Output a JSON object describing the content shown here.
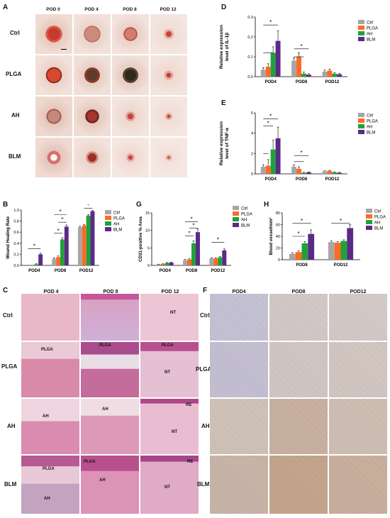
{
  "colors": {
    "ctrl": "#a6a6a6",
    "plga": "#ff6a28",
    "ah": "#1ea33a",
    "blm": "#5b2a86"
  },
  "panels": {
    "A": {
      "letter": "A",
      "cols": [
        "POD 0",
        "POD 4",
        "POD 8",
        "POD 12"
      ],
      "rows": [
        "Ctrl",
        "PLGA",
        "AH",
        "BLM"
      ]
    },
    "C": {
      "letter": "C",
      "cols": [
        "POD 4",
        "POD 8",
        "POD 12"
      ],
      "rows": [
        "Ctrl",
        "PLGA",
        "AH",
        "BLM"
      ],
      "tags": {
        "plga1": "PLGA",
        "plga2": "PLGA",
        "plga3": "PLGA",
        "nt1": "NT",
        "nt2": "NT",
        "ah1": "AH",
        "ah2": "AH",
        "re1": "RE",
        "nt3": "NT",
        "plga4": "PLGA",
        "ah3": "AH",
        "plga5": "PLGA",
        "ah4": "AH",
        "re2": "RE",
        "nt4": "NT"
      }
    },
    "F": {
      "letter": "F",
      "cols": [
        "POD4",
        "POD8",
        "POD12"
      ],
      "rows": [
        "Ctrl",
        "PLGA",
        "AH",
        "BLM"
      ]
    }
  },
  "chart_data": [
    {
      "id": "B",
      "letter": "B",
      "type": "bar",
      "ylabel": "Wound Healing Rate",
      "categories": [
        "POD4",
        "POD8",
        "POD12"
      ],
      "ylim": [
        0,
        1.0
      ],
      "yticks": [
        "0.0",
        "0.2",
        "0.4",
        "0.6",
        "0.8",
        "1.0"
      ],
      "series": [
        {
          "name": "Ctrl",
          "values": [
            0,
            0.12,
            0.69
          ],
          "err": [
            0,
            0.02,
            0.02
          ]
        },
        {
          "name": "PLGA",
          "values": [
            0,
            0.15,
            0.72
          ],
          "err": [
            0,
            0.02,
            0.02
          ]
        },
        {
          "name": "AH",
          "values": [
            0.02,
            0.47,
            0.9
          ],
          "err": [
            0.01,
            0.03,
            0.02
          ]
        },
        {
          "name": "BLM",
          "values": [
            0.2,
            0.7,
            0.98
          ],
          "err": [
            0.02,
            0.03,
            0.01
          ]
        }
      ],
      "sig": [
        {
          "from": [
            0,
            0
          ],
          "to": [
            0,
            3
          ],
          "level": 0.3,
          "mark": "*"
        },
        {
          "from": [
            1,
            0
          ],
          "to": [
            1,
            3
          ],
          "level": 0.92,
          "mark": "*"
        },
        {
          "from": [
            1,
            1
          ],
          "to": [
            1,
            3
          ],
          "level": 0.78,
          "mark": "*"
        },
        {
          "from": [
            1,
            0
          ],
          "to": [
            1,
            2
          ],
          "level": 0.58,
          "mark": "*"
        },
        {
          "from": [
            2,
            0
          ],
          "to": [
            2,
            3
          ],
          "level": 1.12,
          "mark": "*"
        },
        {
          "from": [
            2,
            1
          ],
          "to": [
            2,
            3
          ],
          "level": 1.03,
          "mark": "*"
        }
      ]
    },
    {
      "id": "G",
      "letter": "G",
      "type": "bar",
      "ylabel": "CD31-positive % Area",
      "categories": [
        "POD4",
        "POD8",
        "POD12"
      ],
      "ylim": [
        0,
        15
      ],
      "yticks": [
        "0",
        "5",
        "10",
        "15"
      ],
      "series": [
        {
          "name": "Ctrl",
          "values": [
            0.3,
            1.5,
            2.0
          ],
          "err": [
            0.05,
            0.2,
            0.2
          ]
        },
        {
          "name": "PLGA",
          "values": [
            0.4,
            1.7,
            2.0
          ],
          "err": [
            0.05,
            0.2,
            0.2
          ]
        },
        {
          "name": "AH",
          "values": [
            0.7,
            6.3,
            2.3
          ],
          "err": [
            0.1,
            0.7,
            0.2
          ]
        },
        {
          "name": "BLM",
          "values": [
            0.8,
            9.5,
            4.3
          ],
          "err": [
            0.1,
            0.9,
            0.4
          ]
        }
      ],
      "sig": [
        {
          "from": [
            1,
            0
          ],
          "to": [
            1,
            3
          ],
          "level": 12.5,
          "mark": "*"
        },
        {
          "from": [
            1,
            1
          ],
          "to": [
            1,
            3
          ],
          "level": 10.6,
          "mark": "*"
        },
        {
          "from": [
            1,
            0
          ],
          "to": [
            1,
            2
          ],
          "level": 8.4,
          "mark": "*"
        },
        {
          "from": [
            2,
            0
          ],
          "to": [
            2,
            3
          ],
          "level": 6.6,
          "mark": "*"
        }
      ]
    },
    {
      "id": "H",
      "letter": "H",
      "type": "bar",
      "ylabel": "Blood vessel/mm²",
      "categories": [
        "POD8",
        "POD12"
      ],
      "ylim": [
        0,
        80
      ],
      "yticks": [
        "0",
        "20",
        "40",
        "60",
        "80"
      ],
      "series": [
        {
          "name": "Ctrl",
          "values": [
            10,
            30
          ],
          "err": [
            2,
            2
          ]
        },
        {
          "name": "PLGA",
          "values": [
            13,
            29
          ],
          "err": [
            2,
            2
          ]
        },
        {
          "name": "AH",
          "values": [
            28,
            32
          ],
          "err": [
            3,
            2
          ]
        },
        {
          "name": "BLM",
          "values": [
            44,
            54
          ],
          "err": [
            7,
            6
          ]
        }
      ],
      "sig": [
        {
          "from": [
            0,
            0
          ],
          "to": [
            0,
            3
          ],
          "level": 62,
          "mark": "*"
        },
        {
          "from": [
            0,
            0
          ],
          "to": [
            0,
            2
          ],
          "level": 40,
          "mark": "*"
        },
        {
          "from": [
            1,
            0
          ],
          "to": [
            1,
            3
          ],
          "level": 62,
          "mark": "*"
        }
      ]
    },
    {
      "id": "D",
      "letter": "D",
      "type": "bar",
      "ylabel": "Relative expression level of IL-1β",
      "categories": [
        "POD4",
        "POD8",
        "POD12"
      ],
      "ylim": [
        0,
        0.3
      ],
      "yticks": [
        "0.0",
        "0.1",
        "0.2",
        "0.3"
      ],
      "series": [
        {
          "name": "Ctrl",
          "values": [
            0.035,
            0.08,
            0.025
          ],
          "err": [
            0.01,
            0.015,
            0.008
          ]
        },
        {
          "name": "PLGA",
          "values": [
            0.05,
            0.1,
            0.03
          ],
          "err": [
            0.015,
            0.02,
            0.008
          ]
        },
        {
          "name": "AH",
          "values": [
            0.12,
            0.015,
            0.015
          ],
          "err": [
            0.03,
            0.008,
            0.005
          ]
        },
        {
          "name": "BLM",
          "values": [
            0.18,
            0.01,
            0.012
          ],
          "err": [
            0.05,
            0.005,
            0.004
          ]
        }
      ],
      "sig": [
        {
          "from": [
            0,
            0
          ],
          "to": [
            0,
            3
          ],
          "level": 0.26,
          "mark": "*"
        },
        {
          "from": [
            0,
            0
          ],
          "to": [
            0,
            2
          ],
          "level": 0.12,
          "mark": ""
        },
        {
          "from": [
            1,
            0
          ],
          "to": [
            1,
            3
          ],
          "level": 0.14,
          "mark": "*"
        },
        {
          "from": [
            1,
            0
          ],
          "to": [
            1,
            2
          ],
          "level": 0.1,
          "mark": ""
        }
      ]
    },
    {
      "id": "E",
      "letter": "E",
      "type": "bar",
      "ylabel": "Relative expression level of TNF-α",
      "categories": [
        "POD4",
        "POD8",
        "POD12"
      ],
      "ylim": [
        0,
        6
      ],
      "yticks": [
        "0",
        "2",
        "4",
        "6"
      ],
      "series": [
        {
          "name": "Ctrl",
          "values": [
            0.7,
            0.7,
            0.25
          ],
          "err": [
            0.2,
            0.2,
            0.05
          ]
        },
        {
          "name": "PLGA",
          "values": [
            0.8,
            0.5,
            0.3
          ],
          "err": [
            0.6,
            0.2,
            0.05
          ]
        },
        {
          "name": "AH",
          "values": [
            2.4,
            0.1,
            0.15
          ],
          "err": [
            0.9,
            0.05,
            0.05
          ]
        },
        {
          "name": "BLM",
          "values": [
            3.5,
            0.15,
            0.1
          ],
          "err": [
            1.1,
            0.05,
            0.05
          ]
        }
      ],
      "sig": [
        {
          "from": [
            0,
            0
          ],
          "to": [
            0,
            3
          ],
          "level": 5.4,
          "mark": "*"
        },
        {
          "from": [
            0,
            0
          ],
          "to": [
            0,
            2
          ],
          "level": 4.7,
          "mark": "*"
        },
        {
          "from": [
            0,
            0
          ],
          "to": [
            0,
            1
          ],
          "level": 2.0,
          "mark": ""
        },
        {
          "from": [
            1,
            0
          ],
          "to": [
            1,
            3
          ],
          "level": 1.8,
          "mark": "*"
        },
        {
          "from": [
            1,
            0
          ],
          "to": [
            1,
            2
          ],
          "level": 1.2,
          "mark": ""
        }
      ]
    }
  ]
}
